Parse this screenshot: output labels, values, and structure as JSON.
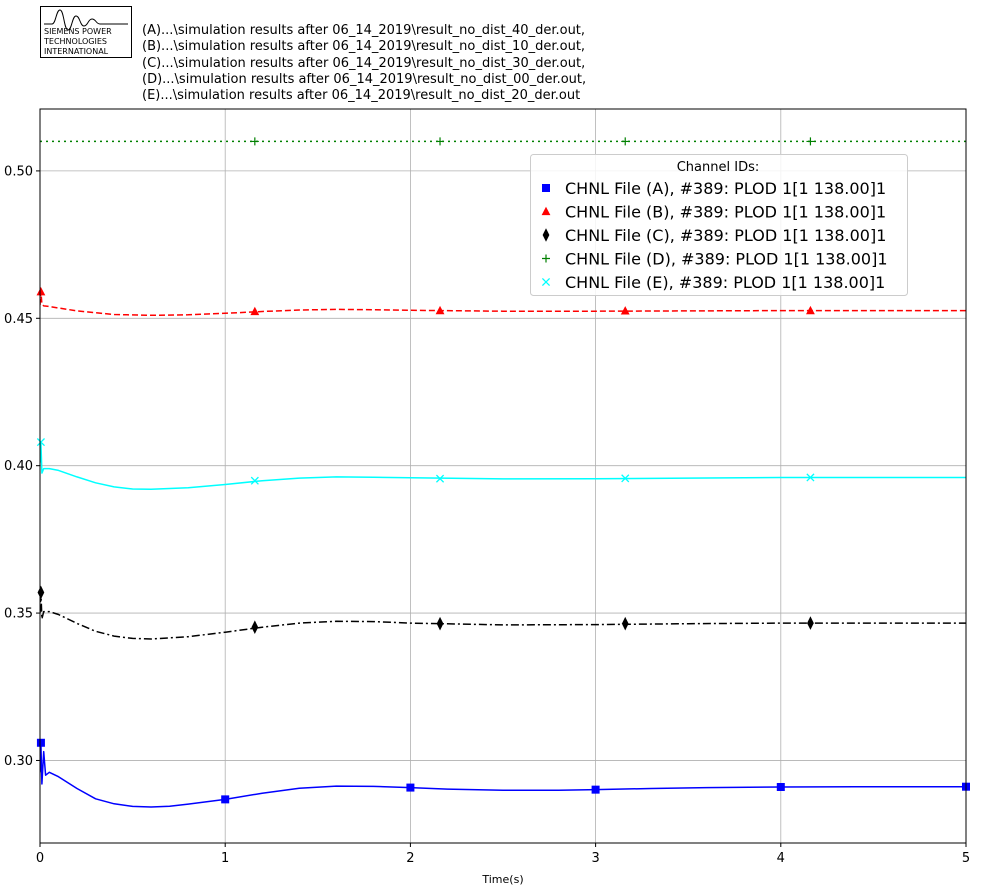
{
  "logo": {
    "lines": [
      "SIEMENS POWER",
      "TECHNOLOGIES",
      "INTERNATIONAL"
    ]
  },
  "files": [
    "(A)...\\simulation results after 06_14_2019\\result_no_dist_40_der.out,",
    "(B)...\\simulation results after 06_14_2019\\result_no_dist_10_der.out,",
    "(C)...\\simulation results after 06_14_2019\\result_no_dist_30_der.out,",
    "(D)...\\simulation results after 06_14_2019\\result_no_dist_00_der.out,",
    "(E)...\\simulation results after 06_14_2019\\result_no_dist_20_der.out"
  ],
  "chart_data": {
    "type": "line",
    "xlabel": "Time(s)",
    "ylabel": "",
    "xlim": [
      0,
      5
    ],
    "ylim": [
      0.272,
      0.521
    ],
    "xticks": [
      0,
      1,
      2,
      3,
      4,
      5
    ],
    "yticks": [
      0.3,
      0.35,
      0.4,
      0.45,
      0.5
    ],
    "xtick_labels": [
      "0",
      "1",
      "2",
      "3",
      "4",
      "5"
    ],
    "ytick_labels": [
      "0.30",
      "0.35",
      "0.40",
      "0.45",
      "0.50"
    ],
    "grid": true,
    "legend": {
      "title": "Channel IDs:",
      "placement": "top-right"
    },
    "series": [
      {
        "name": "CHNL File (A), #389: PLOD 1[1 138.00]1",
        "color": "#0000ff",
        "linestyle": "solid",
        "marker": "square",
        "x": [
          0,
          0.005,
          0.01,
          0.02,
          0.03,
          0.05,
          0.1,
          0.2,
          0.3,
          0.4,
          0.5,
          0.6,
          0.7,
          0.8,
          1.0,
          1.2,
          1.4,
          1.6,
          1.8,
          2.0,
          2.2,
          2.5,
          2.8,
          3.0,
          3.3,
          3.6,
          4.0,
          4.4,
          4.8,
          5.0
        ],
        "values": [
          0.296,
          0.306,
          0.292,
          0.303,
          0.295,
          0.296,
          0.2945,
          0.2905,
          0.287,
          0.2853,
          0.2844,
          0.2842,
          0.2845,
          0.2852,
          0.2868,
          0.2889,
          0.2906,
          0.2913,
          0.2912,
          0.2908,
          0.2903,
          0.2899,
          0.2899,
          0.2901,
          0.2905,
          0.2908,
          0.291,
          0.2911,
          0.2911,
          0.2911
        ],
        "marker_x": [
          0.005,
          1.0,
          2.0,
          3.0,
          4.0,
          5.0
        ],
        "marker_values": [
          0.306,
          0.2868,
          0.2908,
          0.2901,
          0.291,
          0.2911
        ]
      },
      {
        "name": "CHNL File (B), #389: PLOD 1[1 138.00]1",
        "color": "#ff0000",
        "linestyle": "dashed",
        "marker": "triangle",
        "x": [
          0,
          0.005,
          0.01,
          0.02,
          0.05,
          0.1,
          0.2,
          0.4,
          0.6,
          0.8,
          1.0,
          1.2,
          1.4,
          1.6,
          1.8,
          2.0,
          2.5,
          3.0,
          3.5,
          4.0,
          4.5,
          5.0
        ],
        "values": [
          0.4545,
          0.459,
          0.4548,
          0.4542,
          0.454,
          0.4535,
          0.4525,
          0.4513,
          0.451,
          0.4512,
          0.4517,
          0.4523,
          0.4528,
          0.453,
          0.4529,
          0.4527,
          0.4524,
          0.4524,
          0.4525,
          0.4526,
          0.4526,
          0.4526
        ],
        "marker_x": [
          0.005,
          1.16,
          2.16,
          3.16,
          4.16
        ],
        "marker_values": [
          0.459,
          0.4523,
          0.4526,
          0.4525,
          0.4526
        ]
      },
      {
        "name": "CHNL File (C), #389: PLOD 1[1 138.00]1",
        "color": "#000000",
        "linestyle": "dashdot",
        "marker": "thin_diamond",
        "x": [
          0,
          0.005,
          0.01,
          0.02,
          0.05,
          0.1,
          0.2,
          0.3,
          0.4,
          0.5,
          0.6,
          0.8,
          1.0,
          1.2,
          1.4,
          1.6,
          1.8,
          2.0,
          2.5,
          3.0,
          3.5,
          4.0,
          4.5,
          5.0
        ],
        "values": [
          0.35,
          0.357,
          0.348,
          0.3505,
          0.3505,
          0.3495,
          0.3465,
          0.3438,
          0.3422,
          0.3414,
          0.3412,
          0.342,
          0.3435,
          0.3452,
          0.3466,
          0.3472,
          0.3471,
          0.3466,
          0.346,
          0.3461,
          0.3464,
          0.3466,
          0.3466,
          0.3466
        ],
        "marker_x": [
          0.005,
          1.16,
          2.16,
          3.16,
          4.16
        ],
        "marker_values": [
          0.357,
          0.3452,
          0.3464,
          0.3464,
          0.3466
        ]
      },
      {
        "name": "CHNL File (D), #389: PLOD 1[1 138.00]1",
        "color": "#008000",
        "linestyle": "dotted",
        "marker": "plus",
        "x": [
          0,
          5.0
        ],
        "values": [
          0.51,
          0.51
        ],
        "marker_x": [
          1.16,
          2.16,
          3.16,
          4.16
        ],
        "marker_values": [
          0.51,
          0.51,
          0.51,
          0.51
        ]
      },
      {
        "name": "CHNL File (E), #389: PLOD 1[1 138.00]1",
        "color": "#00ffff",
        "linestyle": "solid",
        "marker": "x",
        "x": [
          0,
          0.005,
          0.01,
          0.02,
          0.05,
          0.1,
          0.2,
          0.3,
          0.4,
          0.5,
          0.6,
          0.8,
          1.0,
          1.2,
          1.4,
          1.6,
          1.8,
          2.0,
          2.5,
          3.0,
          3.5,
          4.0,
          4.5,
          5.0
        ],
        "values": [
          0.401,
          0.408,
          0.3975,
          0.399,
          0.399,
          0.3984,
          0.3962,
          0.3942,
          0.3928,
          0.3921,
          0.392,
          0.3925,
          0.3936,
          0.3949,
          0.3958,
          0.3962,
          0.3961,
          0.3959,
          0.3955,
          0.3956,
          0.3958,
          0.396,
          0.396,
          0.396
        ],
        "marker_x": [
          0.005,
          1.16,
          2.16,
          3.16,
          4.16
        ],
        "marker_values": [
          0.408,
          0.3949,
          0.3956,
          0.3957,
          0.396
        ]
      }
    ]
  }
}
